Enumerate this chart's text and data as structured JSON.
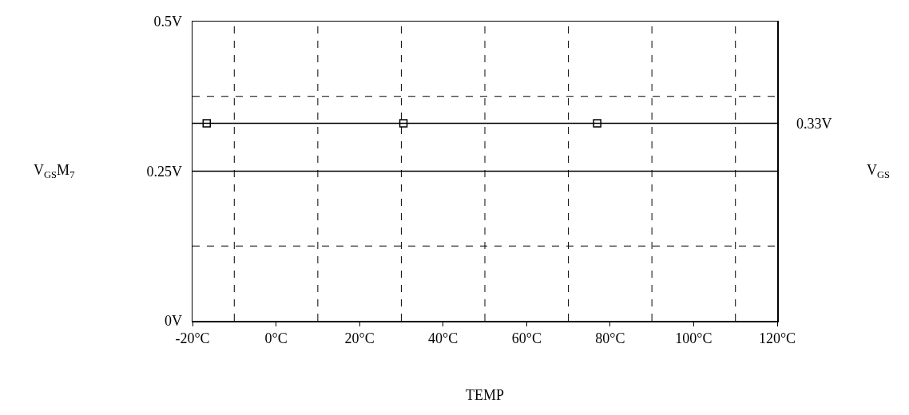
{
  "chart_data": {
    "type": "line",
    "xlabel": "TEMP",
    "ylabel": "V$_{GS}$M$_{7}$",
    "y2label": "V$_{GS}$",
    "xlim": [
      -20,
      120
    ],
    "xticks": [
      {
        "value": -20,
        "label": "-20°C"
      },
      {
        "value": -10,
        "label": null
      },
      {
        "value": 0,
        "label": "0°C"
      },
      {
        "value": 10,
        "label": null
      },
      {
        "value": 20,
        "label": "20°C"
      },
      {
        "value": 30,
        "label": null
      },
      {
        "value": 40,
        "label": "40°C"
      },
      {
        "value": 50,
        "label": null
      },
      {
        "value": 60,
        "label": "60°C"
      },
      {
        "value": 70,
        "label": null
      },
      {
        "value": 80,
        "label": "80°C"
      },
      {
        "value": 90,
        "label": null
      },
      {
        "value": 100,
        "label": "100°C"
      },
      {
        "value": 110,
        "label": null
      },
      {
        "value": 120,
        "label": "120°C"
      }
    ],
    "ylim": [
      0,
      0.5
    ],
    "yticks": [
      {
        "value": 0,
        "label": "0V"
      },
      {
        "value": 0.125,
        "label": null
      },
      {
        "value": 0.25,
        "label": "0.25V"
      },
      {
        "value": 0.375,
        "label": null
      },
      {
        "value": 0.5,
        "label": "0.5V"
      }
    ],
    "annotations": [
      {
        "text": "0.33V",
        "x": 120,
        "y": 0.33
      }
    ],
    "grid": true,
    "line_style": "solid",
    "series": [
      {
        "color": "#000000",
        "x": [
          -20,
          120
        ],
        "values": [
          0.25,
          0.25
        ]
      },
      {
        "color": "#000000",
        "x": [
          -20,
          120
        ],
        "values": [
          0.33,
          0.33
        ]
      },
      {
        "type": "scatter",
        "marker": "square",
        "color": "#000000",
        "x": [
          -16.6,
          30.5,
          76.9
        ],
        "values": [
          0.33,
          0.33,
          0.33
        ]
      }
    ]
  }
}
